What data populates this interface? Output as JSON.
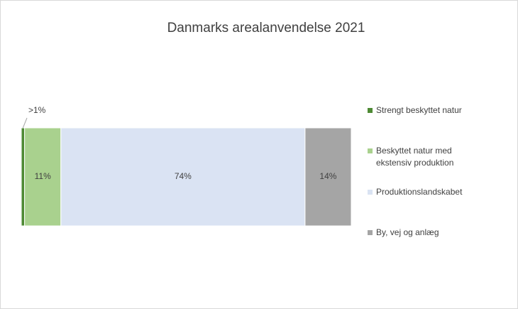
{
  "chart_data": {
    "type": "stacked-bar-horizontal",
    "title": "Danmarks arealanvendelse 2021",
    "series": [
      {
        "name": "Strengt beskyttet natur",
        "color": "#4e8a34",
        "values": [
          1
        ],
        "value_labels": [
          ">1%"
        ]
      },
      {
        "name": "Beskyttet natur med ekstensiv produktion",
        "color": "#a9d18e",
        "values": [
          11
        ],
        "value_labels": [
          "11%"
        ]
      },
      {
        "name": "Produktionslandskabet",
        "color": "#dae3f3",
        "values": [
          74
        ],
        "value_labels": [
          "74%"
        ]
      },
      {
        "name": "By, vej og anlæg",
        "color": "#a5a5a5",
        "values": [
          14
        ],
        "value_labels": [
          "14%"
        ]
      }
    ],
    "legend": "right"
  }
}
